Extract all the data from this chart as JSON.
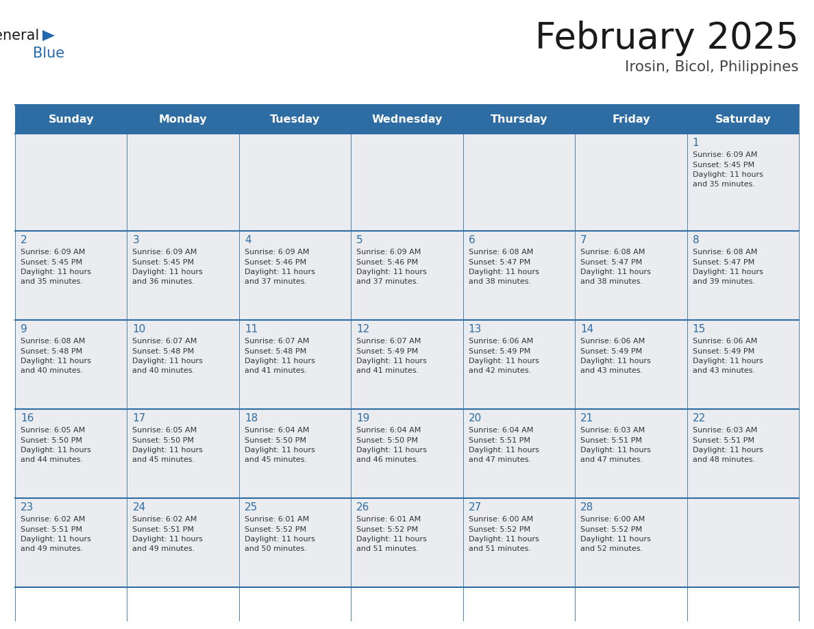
{
  "title": "February 2025",
  "subtitle": "Irosin, Bicol, Philippines",
  "header_bg_color": "#2E6DA4",
  "header_text_color": "#FFFFFF",
  "cell_bg_odd": "#EAECF0",
  "cell_bg_even": "#EAECF0",
  "day_number_color": "#2E6DA4",
  "text_color": "#333333",
  "border_color": "#2E6DA4",
  "line_color": "#2E6DA4",
  "days_of_week": [
    "Sunday",
    "Monday",
    "Tuesday",
    "Wednesday",
    "Thursday",
    "Friday",
    "Saturday"
  ],
  "weeks": [
    [
      {
        "date": "",
        "sunrise": "",
        "sunset": "",
        "daylight": ""
      },
      {
        "date": "",
        "sunrise": "",
        "sunset": "",
        "daylight": ""
      },
      {
        "date": "",
        "sunrise": "",
        "sunset": "",
        "daylight": ""
      },
      {
        "date": "",
        "sunrise": "",
        "sunset": "",
        "daylight": ""
      },
      {
        "date": "",
        "sunrise": "",
        "sunset": "",
        "daylight": ""
      },
      {
        "date": "",
        "sunrise": "",
        "sunset": "",
        "daylight": ""
      },
      {
        "date": "1",
        "sunrise": "6:09 AM",
        "sunset": "5:45 PM",
        "daylight": "11 hours and 35 minutes."
      }
    ],
    [
      {
        "date": "2",
        "sunrise": "6:09 AM",
        "sunset": "5:45 PM",
        "daylight": "11 hours and 35 minutes."
      },
      {
        "date": "3",
        "sunrise": "6:09 AM",
        "sunset": "5:45 PM",
        "daylight": "11 hours and 36 minutes."
      },
      {
        "date": "4",
        "sunrise": "6:09 AM",
        "sunset": "5:46 PM",
        "daylight": "11 hours and 37 minutes."
      },
      {
        "date": "5",
        "sunrise": "6:09 AM",
        "sunset": "5:46 PM",
        "daylight": "11 hours and 37 minutes."
      },
      {
        "date": "6",
        "sunrise": "6:08 AM",
        "sunset": "5:47 PM",
        "daylight": "11 hours and 38 minutes."
      },
      {
        "date": "7",
        "sunrise": "6:08 AM",
        "sunset": "5:47 PM",
        "daylight": "11 hours and 38 minutes."
      },
      {
        "date": "8",
        "sunrise": "6:08 AM",
        "sunset": "5:47 PM",
        "daylight": "11 hours and 39 minutes."
      }
    ],
    [
      {
        "date": "9",
        "sunrise": "6:08 AM",
        "sunset": "5:48 PM",
        "daylight": "11 hours and 40 minutes."
      },
      {
        "date": "10",
        "sunrise": "6:07 AM",
        "sunset": "5:48 PM",
        "daylight": "11 hours and 40 minutes."
      },
      {
        "date": "11",
        "sunrise": "6:07 AM",
        "sunset": "5:48 PM",
        "daylight": "11 hours and 41 minutes."
      },
      {
        "date": "12",
        "sunrise": "6:07 AM",
        "sunset": "5:49 PM",
        "daylight": "11 hours and 41 minutes."
      },
      {
        "date": "13",
        "sunrise": "6:06 AM",
        "sunset": "5:49 PM",
        "daylight": "11 hours and 42 minutes."
      },
      {
        "date": "14",
        "sunrise": "6:06 AM",
        "sunset": "5:49 PM",
        "daylight": "11 hours and 43 minutes."
      },
      {
        "date": "15",
        "sunrise": "6:06 AM",
        "sunset": "5:49 PM",
        "daylight": "11 hours and 43 minutes."
      }
    ],
    [
      {
        "date": "16",
        "sunrise": "6:05 AM",
        "sunset": "5:50 PM",
        "daylight": "11 hours and 44 minutes."
      },
      {
        "date": "17",
        "sunrise": "6:05 AM",
        "sunset": "5:50 PM",
        "daylight": "11 hours and 45 minutes."
      },
      {
        "date": "18",
        "sunrise": "6:04 AM",
        "sunset": "5:50 PM",
        "daylight": "11 hours and 45 minutes."
      },
      {
        "date": "19",
        "sunrise": "6:04 AM",
        "sunset": "5:50 PM",
        "daylight": "11 hours and 46 minutes."
      },
      {
        "date": "20",
        "sunrise": "6:04 AM",
        "sunset": "5:51 PM",
        "daylight": "11 hours and 47 minutes."
      },
      {
        "date": "21",
        "sunrise": "6:03 AM",
        "sunset": "5:51 PM",
        "daylight": "11 hours and 47 minutes."
      },
      {
        "date": "22",
        "sunrise": "6:03 AM",
        "sunset": "5:51 PM",
        "daylight": "11 hours and 48 minutes."
      }
    ],
    [
      {
        "date": "23",
        "sunrise": "6:02 AM",
        "sunset": "5:51 PM",
        "daylight": "11 hours and 49 minutes."
      },
      {
        "date": "24",
        "sunrise": "6:02 AM",
        "sunset": "5:51 PM",
        "daylight": "11 hours and 49 minutes."
      },
      {
        "date": "25",
        "sunrise": "6:01 AM",
        "sunset": "5:52 PM",
        "daylight": "11 hours and 50 minutes."
      },
      {
        "date": "26",
        "sunrise": "6:01 AM",
        "sunset": "5:52 PM",
        "daylight": "11 hours and 51 minutes."
      },
      {
        "date": "27",
        "sunrise": "6:00 AM",
        "sunset": "5:52 PM",
        "daylight": "11 hours and 51 minutes."
      },
      {
        "date": "28",
        "sunrise": "6:00 AM",
        "sunset": "5:52 PM",
        "daylight": "11 hours and 52 minutes."
      },
      {
        "date": "",
        "sunrise": "",
        "sunset": "",
        "daylight": ""
      }
    ]
  ],
  "logo_color_general": "#1a1a1a",
  "logo_color_blue": "#2469AE",
  "logo_triangle_color": "#2469AE",
  "title_color": "#1a1a1a",
  "subtitle_color": "#444444"
}
